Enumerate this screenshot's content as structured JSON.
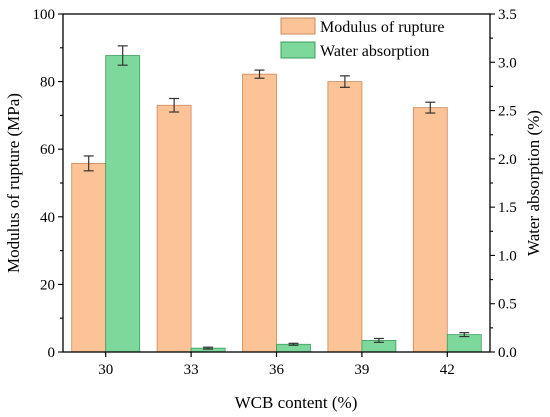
{
  "colors": {
    "series_1_fill": "#fcc397",
    "series_1_stroke": "#c98a5c",
    "series_2_fill": "#7dd89b",
    "series_2_stroke": "#3e9c5e",
    "axis": "#000000",
    "error_bar": "#333333"
  },
  "chart_data": {
    "type": "bar",
    "xlabel": "WCB content (%)",
    "ylabel_left": "Modulus of rupture (MPa)",
    "ylabel_right": "Water absorption (%)",
    "categories": [
      "30",
      "33",
      "36",
      "39",
      "42"
    ],
    "ylim_left": [
      0,
      100
    ],
    "ylim_right": [
      0,
      3.5
    ],
    "yticks_left": [
      "0",
      "20",
      "40",
      "60",
      "80",
      "100"
    ],
    "yticks_right": [
      "0.0",
      "0.5",
      "1.0",
      "1.5",
      "2.0",
      "2.5",
      "3.0",
      "3.5"
    ],
    "grid": false,
    "legend_position": "top-right",
    "series": [
      {
        "name": "Modulus of rupture",
        "axis": "left",
        "values": [
          55.8,
          73.0,
          82.2,
          80.0,
          72.3
        ],
        "errors": [
          2.2,
          2.0,
          1.2,
          1.7,
          1.6
        ]
      },
      {
        "name": "Water absorption",
        "axis": "right",
        "values": [
          3.07,
          0.04,
          0.08,
          0.12,
          0.18
        ],
        "errors": [
          0.1,
          0.01,
          0.01,
          0.02,
          0.02
        ]
      }
    ]
  }
}
